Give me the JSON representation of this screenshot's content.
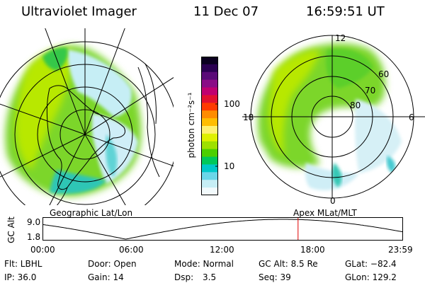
{
  "header": {
    "instrument": "Ultraviolet Imager",
    "date": "11 Dec 07",
    "time": "16:59:51 UT"
  },
  "left_panel": {
    "caption": "Geographic Lat/Lon"
  },
  "right_panel": {
    "caption": "Apex MLat/MLT",
    "mlt_labels": {
      "top": "12",
      "left": "18",
      "right": "6",
      "bottom": "0"
    },
    "lat_labels": [
      "60",
      "70",
      "80"
    ]
  },
  "colorbar": {
    "unit_label": "photon cm⁻²s⁻¹",
    "ticks": [
      "100",
      "10"
    ],
    "colors": [
      "#0b0020",
      "#2b0052",
      "#5a0a78",
      "#8a0c86",
      "#c00070",
      "#e21030",
      "#ff3a00",
      "#ff8c00",
      "#ffbd00",
      "#fff070",
      "#dff000",
      "#9ee000",
      "#4ccf00",
      "#00c85a",
      "#00c8c8",
      "#6bd6e8",
      "#c6eef5",
      "#f2fafc"
    ]
  },
  "altitude_plot": {
    "ylabel": "GC Alt",
    "ymax_label": "9.0",
    "ymin_label": "1.8",
    "x_ticks": [
      "00:00",
      "06:00",
      "12:00",
      "18:00",
      "23:59"
    ],
    "current_time_marker_hours": 16.998
  },
  "info": {
    "flt": "Flt: LBHL",
    "door": "Door: Open",
    "mode": "Mode: Normal",
    "gc_alt": "GC Alt: 8.5 Re",
    "glat": "GLat: −82.4",
    "ip": "IP: 36.0",
    "gain": "Gain: 14",
    "dsp_label": "Dsp:",
    "dsp_value": "3.5",
    "seq": "Seq: 39",
    "glon": "GLon: 129.2"
  }
}
